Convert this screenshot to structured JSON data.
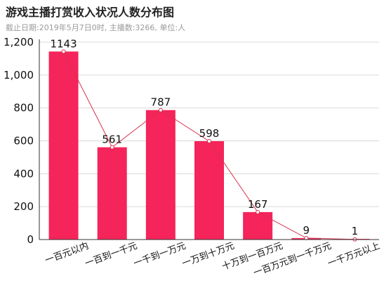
{
  "header": {
    "title": "游戏主播打赏收入状况人数分布图",
    "subtitle": "截止日期:2019年5月7日0时, 主播数:3266, 单位:人"
  },
  "colors": {
    "bar": "#f5245a",
    "line": "#d6324f",
    "grid": "#d9d9d9",
    "axis": "#333333"
  },
  "chart_data": {
    "type": "bar",
    "title": "游戏主播打赏收入状况人数分布图",
    "subtitle": "截止日期:2019年5月7日0时, 主播数:3266, 单位:人",
    "categories": [
      "一百元以内",
      "一百到一千元",
      "一千到一万元",
      "一万到十万元",
      "十万到一百万元",
      "一百万元到一千万元",
      "一千万元以上"
    ],
    "values": [
      1143,
      561,
      787,
      598,
      167,
      9,
      1
    ],
    "data_labels": [
      "1143",
      "561",
      "787",
      "598",
      "167",
      "9",
      "1"
    ],
    "overlay_line": true,
    "ylim": [
      0,
      1200
    ],
    "yticks": [
      0,
      200,
      400,
      600,
      800,
      1000,
      1200
    ],
    "ytick_labels": [
      "0",
      "200",
      "400",
      "600",
      "800",
      "1,000",
      "1,200"
    ],
    "grid": true,
    "legend": "none"
  }
}
